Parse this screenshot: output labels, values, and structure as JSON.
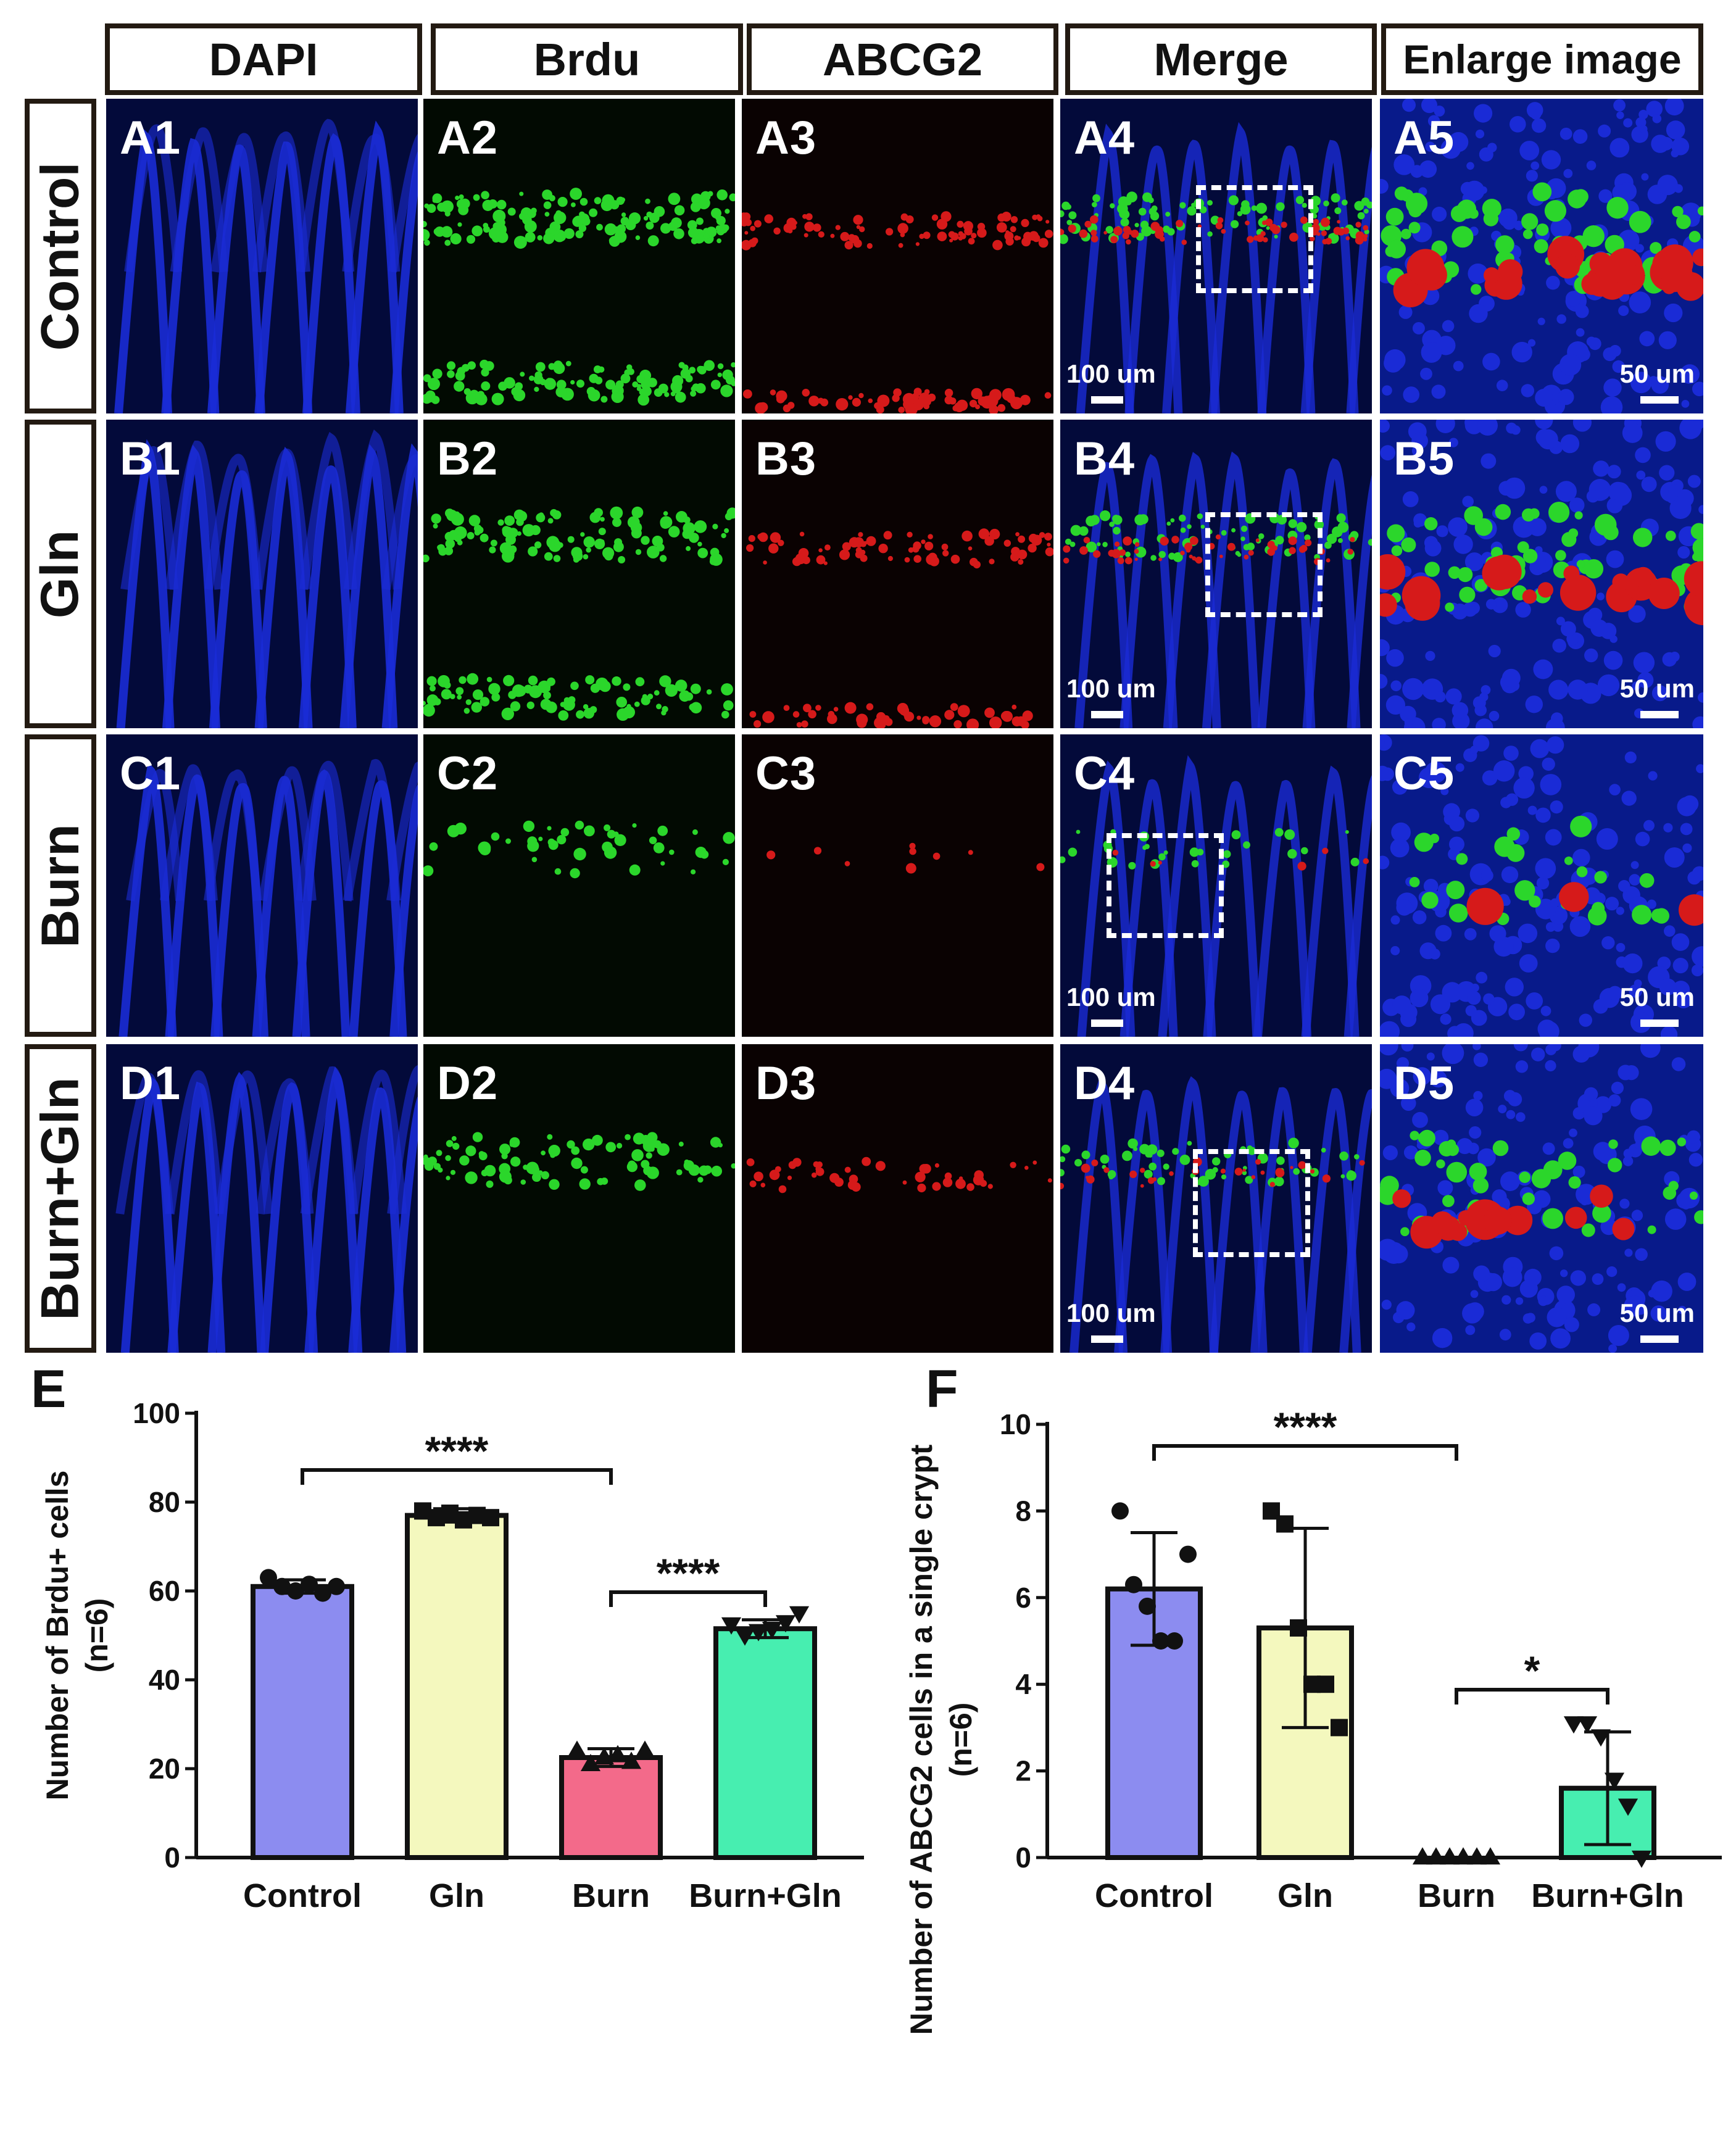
{
  "columns": [
    "DAPI",
    "Brdu",
    "ABCG2",
    "Merge",
    "Enlarge image"
  ],
  "column_subscript_marker": "ABCG2",
  "rows": [
    {
      "label": "Control",
      "panels": [
        "A1",
        "A2",
        "A3",
        "A4",
        "A5"
      ]
    },
    {
      "label": "Gln",
      "panels": [
        "B1",
        "B2",
        "B3",
        "B4",
        "B5"
      ]
    },
    {
      "label": "Burn",
      "panels": [
        "C1",
        "C2",
        "C3",
        "C4",
        "C5"
      ]
    },
    {
      "label": "Burn+Gln",
      "panels": [
        "D1",
        "D2",
        "D3",
        "D4",
        "D5"
      ]
    }
  ],
  "scale_bars": {
    "merge": "100 um",
    "enlarge": "50 um"
  },
  "colors": {
    "dapi": "#1a2bd6",
    "brdu": "#2bd62b",
    "abcg2": "#d61a1a",
    "control_bar": "#8c8cf0",
    "gln_bar": "#f4f8be",
    "burn_bar": "#f36a8a",
    "burn_gln_bar": "#47eeb0"
  },
  "chart_data": [
    {
      "panel_label": "E",
      "type": "bar",
      "categories": [
        "Control",
        "Gln",
        "Burn",
        "Burn+Gln"
      ],
      "values": [
        61,
        77,
        22.5,
        51.5
      ],
      "error": [
        1.5,
        1.5,
        2,
        2
      ],
      "points": [
        [
          63,
          61,
          60,
          61.5,
          59.5,
          61
        ],
        [
          78,
          76.5,
          77.5,
          76,
          77,
          76.5
        ],
        [
          24,
          21,
          22.5,
          23,
          21.5,
          24
        ],
        [
          52.5,
          50,
          51,
          51.5,
          53,
          55
        ]
      ],
      "markers": [
        "circle",
        "square",
        "triangle",
        "triangle-down"
      ],
      "ylabel": "Number of Brdu+ cells (n=6)",
      "ylim": [
        0,
        100
      ],
      "yticks": [
        0,
        20,
        40,
        60,
        80,
        100
      ],
      "significance": [
        {
          "from": "Control",
          "to": "Burn",
          "label": "****"
        },
        {
          "from": "Burn",
          "to": "Burn+Gln",
          "label": "****"
        }
      ]
    },
    {
      "panel_label": "F",
      "type": "bar",
      "categories": [
        "Control",
        "Gln",
        "Burn",
        "Burn+Gln"
      ],
      "values": [
        6.2,
        5.3,
        0,
        1.6
      ],
      "error": [
        1.3,
        2.3,
        0,
        1.3
      ],
      "points": [
        [
          8,
          6.3,
          5.8,
          5.0,
          5.0,
          7.0
        ],
        [
          8,
          7.7,
          5.3,
          4,
          4,
          3
        ],
        [
          0,
          0,
          0,
          0,
          0,
          0
        ],
        [
          3.1,
          3.1,
          2.8,
          1.8,
          1.2,
          0
        ]
      ],
      "markers": [
        "circle",
        "square",
        "triangle",
        "triangle-down"
      ],
      "ylabel": "Number of ABCG2 cells in a single crypt (n=6)",
      "ylim": [
        0,
        10
      ],
      "yticks": [
        0,
        2,
        4,
        6,
        8,
        10
      ],
      "significance": [
        {
          "from": "Control",
          "to": "Burn",
          "label": "****"
        },
        {
          "from": "Burn",
          "to": "Burn+Gln",
          "label": "*"
        }
      ]
    }
  ]
}
